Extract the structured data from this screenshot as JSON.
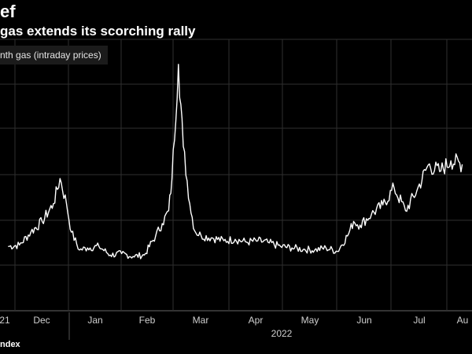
{
  "header": {
    "title": "ef",
    "subtitle": "gas extends its scorching rally"
  },
  "legend": {
    "label": "nth gas (intraday prices)"
  },
  "footer": {
    "source": "ndex"
  },
  "colors": {
    "background": "#000000",
    "line": "#ffffff",
    "grid": "#333333"
  },
  "chart_data": {
    "type": "line",
    "title": "ef",
    "subtitle": "gas extends its scorching rally",
    "xlabel": "",
    "ylabel": "",
    "x_tick_labels": [
      "21",
      "Dec",
      "Jan",
      "Feb",
      "Mar",
      "Apr",
      "May",
      "Jun",
      "Jul",
      "Au"
    ],
    "year_label": "2022",
    "grid": true,
    "legend_position": "top-left",
    "series": [
      {
        "name": "nth gas (intraday prices)",
        "x": [
          "2021-11-15",
          "2021-11-22",
          "2021-11-29",
          "2021-12-06",
          "2021-12-13",
          "2021-12-17",
          "2021-12-21",
          "2021-12-24",
          "2021-12-29",
          "2022-01-03",
          "2022-01-10",
          "2022-01-17",
          "2022-01-24",
          "2022-01-31",
          "2022-02-07",
          "2022-02-14",
          "2022-02-18",
          "2022-02-22",
          "2022-02-24",
          "2022-02-28",
          "2022-03-03",
          "2022-03-07",
          "2022-03-10",
          "2022-03-14",
          "2022-03-21",
          "2022-03-28",
          "2022-04-04",
          "2022-04-11",
          "2022-04-18",
          "2022-04-25",
          "2022-05-02",
          "2022-05-09",
          "2022-05-16",
          "2022-05-23",
          "2022-05-30",
          "2022-06-06",
          "2022-06-13",
          "2022-06-16",
          "2022-06-20",
          "2022-06-27",
          "2022-07-04",
          "2022-07-11",
          "2022-07-18",
          "2022-07-25",
          "2022-08-01",
          "2022-08-08",
          "2022-08-15",
          "2022-08-22"
        ],
        "y": [
          90,
          92,
          110,
          125,
          150,
          185,
          150,
          110,
          85,
          88,
          90,
          78,
          80,
          76,
          78,
          105,
          122,
          140,
          185,
          345,
          230,
          150,
          112,
          105,
          102,
          98,
          100,
          96,
          98,
          95,
          90,
          88,
          86,
          85,
          88,
          83,
          108,
          125,
          120,
          135,
          148,
          172,
          140,
          168,
          204,
          195,
          210,
          205
        ]
      }
    ]
  }
}
